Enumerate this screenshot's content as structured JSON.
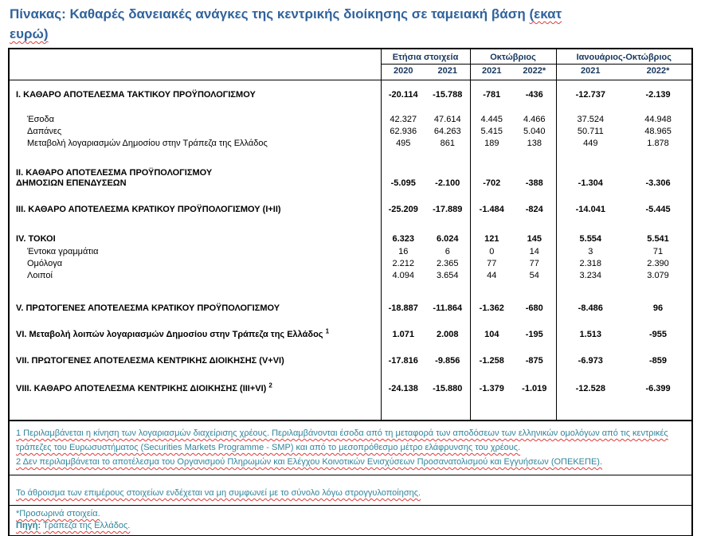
{
  "title": {
    "text": "Πίνακας: Καθαρές δανειακές ανάγκες της κεντρικής διοίκησης σε ταμειακή βάση",
    "unit_open": "(εκατ",
    "unit_close": "ευρώ)"
  },
  "table": {
    "col_groups": [
      {
        "label": "Ετήσια στοιχεία",
        "years": [
          "2020",
          "2021"
        ]
      },
      {
        "label": "Οκτώβριος",
        "years": [
          "2021",
          "2022*"
        ]
      },
      {
        "label": "Ιανουάριος-Οκτώβριος",
        "years": [
          "2021",
          "2022*"
        ]
      }
    ],
    "rows": [
      {
        "label": "Ι. ΚΑΘΑΡΟ ΑΠΟΤΕΛΕΣΜΑ  ΤΑΚΤΙΚΟΥ ΠΡΟΫΠΟΛΟΓΙΣΜΟΥ",
        "sub": false,
        "values": [
          "-20.114",
          "-15.788",
          "-781",
          "-436",
          "-12.737",
          "-2.139"
        ]
      },
      {
        "label": "Έσοδα",
        "sub": true,
        "values": [
          "42.327",
          "47.614",
          "4.445",
          "4.466",
          "37.524",
          "44.948"
        ]
      },
      {
        "label": "Δαπάνες",
        "sub": true,
        "values": [
          "62.936",
          "64.263",
          "5.415",
          "5.040",
          "50.711",
          "48.965"
        ]
      },
      {
        "label": "Μεταβολή λογαριασμών Δημοσίου στην Τράπεζα της Ελλάδος",
        "sub": true,
        "values": [
          "495",
          "861",
          "189",
          "138",
          "449",
          "1.878"
        ]
      },
      {
        "label": "ΙΙ. ΚΑΘΑΡΟ ΑΠΟΤΕΛΕΣΜΑ ΠΡΟΫΠΟΛΟΓΙΣΜΟΥ",
        "label2": "ΔΗΜΟΣΙΩΝ ΕΠΕΝΔΥΣΕΩΝ",
        "sub": false,
        "values": [
          "-5.095",
          "-2.100",
          "-702",
          "-388",
          "-1.304",
          "-3.306"
        ]
      },
      {
        "label": "ΙΙΙ. ΚΑΘΑΡΟ ΑΠΟΤΕΛΕΣΜΑ ΚΡΑΤΙΚΟΥ ΠΡΟΫΠΟΛΟΓΙΣΜΟΥ (Ι+ΙΙ)",
        "sub": false,
        "values": [
          "-25.209",
          "-17.889",
          "-1.484",
          "-824",
          "-14.041",
          "-5.445"
        ]
      },
      {
        "label": "IV. ΤΟΚΟΙ",
        "sub": false,
        "values": [
          "6.323",
          "6.024",
          "121",
          "145",
          "5.554",
          "5.541"
        ]
      },
      {
        "label": "Έντοκα γραμμάτια",
        "sub": true,
        "values": [
          "16",
          "6",
          "0",
          "14",
          "3",
          "71"
        ]
      },
      {
        "label": "Ομόλογα",
        "sub": true,
        "values": [
          "2.212",
          "2.365",
          "77",
          "77",
          "2.318",
          "2.390"
        ]
      },
      {
        "label": "Λοιποί",
        "sub": true,
        "values": [
          "4.094",
          "3.654",
          "44",
          "54",
          "3.234",
          "3.079"
        ]
      },
      {
        "label": "V. ΠΡΩΤΟΓΕΝΕΣ ΑΠΟΤΕΛΕΣΜΑ  ΚΡΑΤΙΚΟΥ ΠΡΟΫΠΟΛΟΓΙΣΜΟΥ",
        "sub": false,
        "values": [
          "-18.887",
          "-11.864",
          "-1.362",
          "-680",
          "-8.486",
          "96"
        ]
      },
      {
        "label": "VI. Μεταβολή λοιπών λογαριασμών Δημοσίου στην Τράπεζα της Ελλάδος",
        "sup": "1",
        "sub": false,
        "values": [
          "1.071",
          "2.008",
          "104",
          "-195",
          "1.513",
          "-955"
        ]
      },
      {
        "label": "VII. ΠΡΩΤΟΓΕΝΕΣ ΑΠΟΤΕΛΕΣΜΑ ΚΕΝΤΡΙΚΗΣ ΔΙΟΙΚΗΣΗΣ (V+VI)",
        "sub": false,
        "values": [
          "-17.816",
          "-9.856",
          "-1.258",
          "-875",
          "-6.973",
          "-859"
        ]
      },
      {
        "label": "VIII. ΚΑΘΑΡΟ ΑΠΟΤΕΛΕΣΜΑ ΚΕΝΤΡΙΚΗΣ ΔΙΟΙΚΗΣΗΣ (ΙΙΙ+VI)",
        "sup": "2",
        "sub": false,
        "values": [
          "-24.138",
          "-15.880",
          "-1.379",
          "-1.019",
          "-12.528",
          "-6.399"
        ]
      }
    ]
  },
  "footnotes": [
    "1 Περιλαμβάνεται η κίνηση των λογαριασμών διαχείρισης χρέους. Περιλαμβάνονται έσοδα από τη μεταφορά των αποδόσεων των ελληνικών ομολόγων από τις κεντρικές τράπεζες του Ευρωσυστήματος (Securities Markets Programme - SMP) και από το μεσοπρόθεσμο μέτρο ελάφρυνσης του χρέους.",
    "2 Δεν περιλαμβάνεται το αποτέλεσμα του Οργανισμού Πληρωμών και Ελέγχου Κοινοτικών Ενισχύσεων Προσανατολισμού και Εγγυήσεων (ΟΠΕΚΕΠΕ)."
  ],
  "notes": {
    "rounding": "Το άθροισμα των επιμέρους στοιχείων ενδέχεται να μη συμφωνεί με το σύνολο λόγω στρογγυλοποίησης.",
    "provisional": "*Προσωρινά στοιχεία."
  },
  "source": {
    "label": "Πηγή:",
    "text": "Τράπεζα της Ελλάδος."
  },
  "colors": {
    "title_blue": "#31639C",
    "header_navy": "#17375D",
    "footnote_teal": "#31849B",
    "squiggle_red": "#E03A3A"
  }
}
